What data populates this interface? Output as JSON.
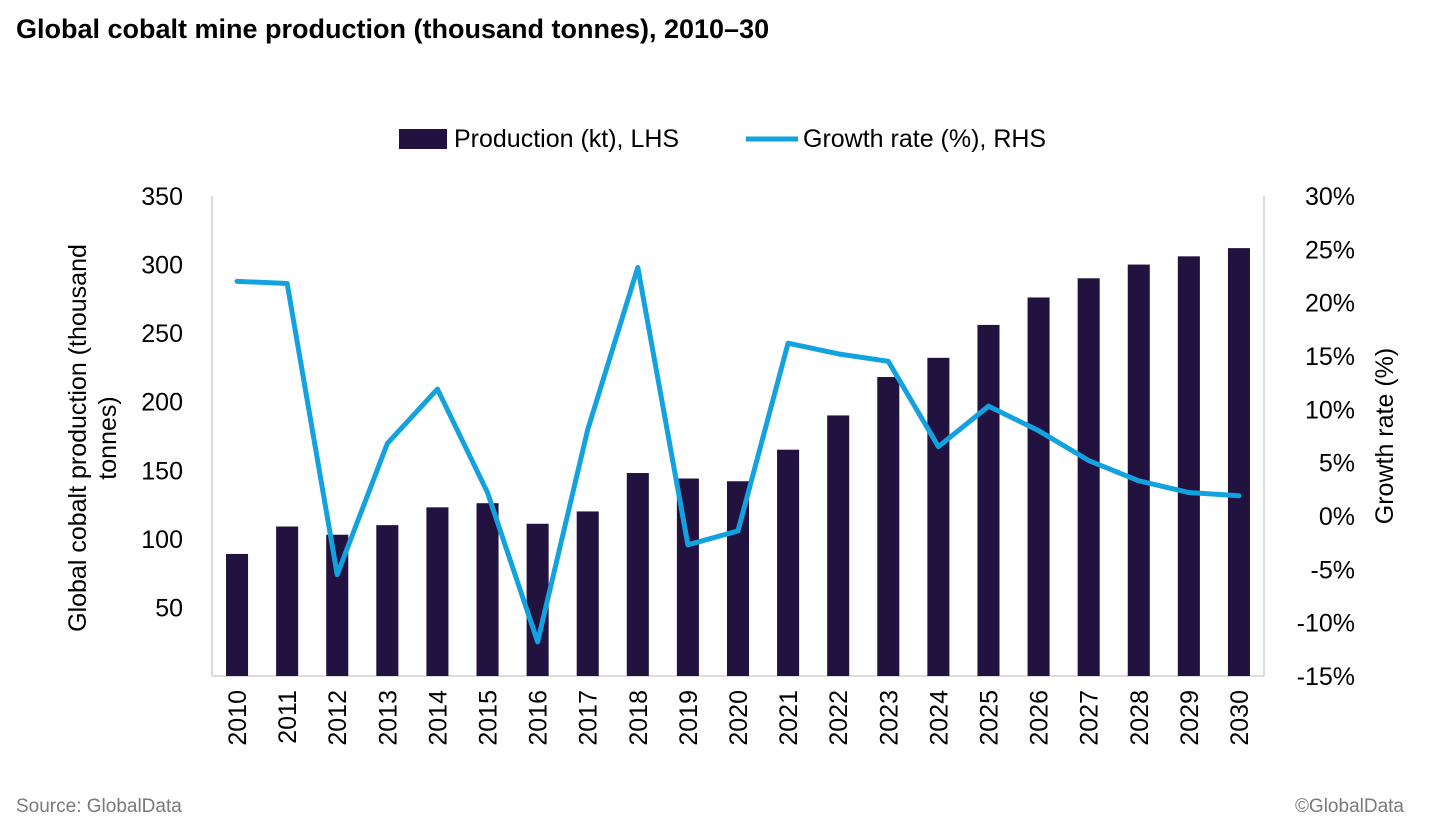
{
  "title": "Global cobalt mine production (thousand tonnes), 2010–30",
  "source": "Source: GlobalData",
  "copyright": "©GlobalData",
  "chart_data": {
    "type": "bar",
    "categories": [
      "2010",
      "2011",
      "2012",
      "2013",
      "2014",
      "2015",
      "2016",
      "2017",
      "2018",
      "2019",
      "2020",
      "2021",
      "2022",
      "2023",
      "2024",
      "2025",
      "2026",
      "2027",
      "2028",
      "2029",
      "2030"
    ],
    "series": [
      {
        "name": "Production (kt), LHS",
        "type": "bar",
        "axis": "left",
        "color": "#22123f",
        "values": [
          89,
          109,
          103,
          110,
          123,
          126,
          111,
          120,
          148,
          144,
          142,
          165,
          190,
          218,
          232,
          256,
          276,
          290,
          300,
          306,
          312
        ]
      },
      {
        "name": "Growth rate (%), RHS",
        "type": "line",
        "axis": "right",
        "color": "#13a2e0",
        "values": [
          22.0,
          21.8,
          -5.5,
          6.8,
          11.9,
          2.2,
          -11.8,
          8.1,
          23.3,
          -2.7,
          -1.4,
          16.2,
          15.2,
          14.5,
          6.5,
          10.3,
          8.0,
          5.2,
          3.3,
          2.2,
          1.9
        ]
      }
    ],
    "y_left": {
      "label": "Global cobalt production (thousand tonnes)",
      "ylim": [
        0,
        350
      ],
      "ticks": [
        "50",
        "100",
        "150",
        "200",
        "250",
        "300",
        "350"
      ],
      "tick_values": [
        50,
        100,
        150,
        200,
        250,
        300,
        350
      ]
    },
    "y_right": {
      "label": "Growth rate (%)",
      "ylim": [
        -15,
        30
      ],
      "ticks": [
        "-15%",
        "-10%",
        "-5%",
        "0%",
        "5%",
        "10%",
        "15%",
        "20%",
        "25%",
        "30%"
      ],
      "tick_values": [
        -15,
        -10,
        -5,
        0,
        5,
        10,
        15,
        20,
        25,
        30
      ]
    },
    "legend_position": "top-center",
    "grid": false
  }
}
